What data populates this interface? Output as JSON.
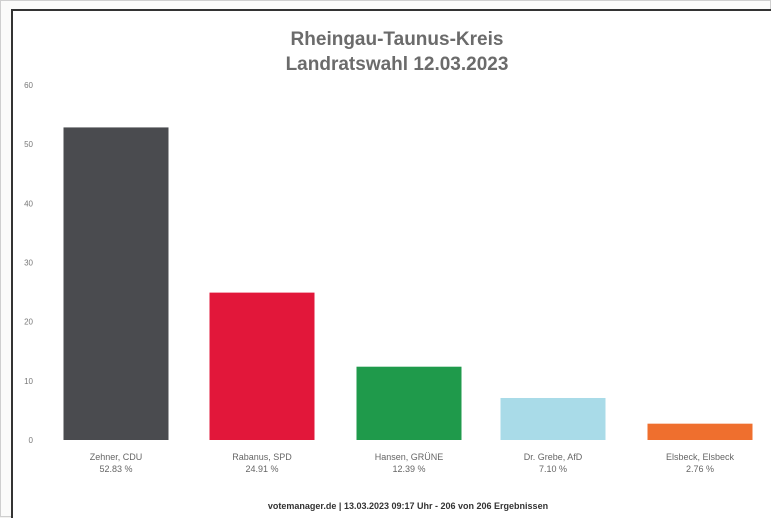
{
  "chart_data": {
    "type": "bar",
    "title": "Rheingau-Taunus-Kreis",
    "subtitle": "Landratswahl 12.03.2023",
    "categories": [
      "Zehner, CDU",
      "Rabanus, SPD",
      "Hansen, GRÜNE",
      "Dr. Grebe, AfD",
      "Elsbeck, Elsbeck"
    ],
    "value_labels": [
      "52.83 %",
      "24.91 %",
      "12.39 %",
      "7.10 %",
      "2.76 %"
    ],
    "values": [
      52.83,
      24.91,
      12.39,
      7.1,
      2.76
    ],
    "colors": [
      "#4a4b4f",
      "#e2173a",
      "#1f9a4b",
      "#a9dbe8",
      "#ef6f2e"
    ],
    "ylim": [
      0,
      60
    ],
    "yticks": [
      0,
      10,
      20,
      30,
      40,
      50,
      60
    ],
    "xlabel": "",
    "ylabel": "",
    "grid": false,
    "footer": "votemanager.de | 13.03.2023 09:17 Uhr - 206 von 206 Ergebnissen"
  }
}
